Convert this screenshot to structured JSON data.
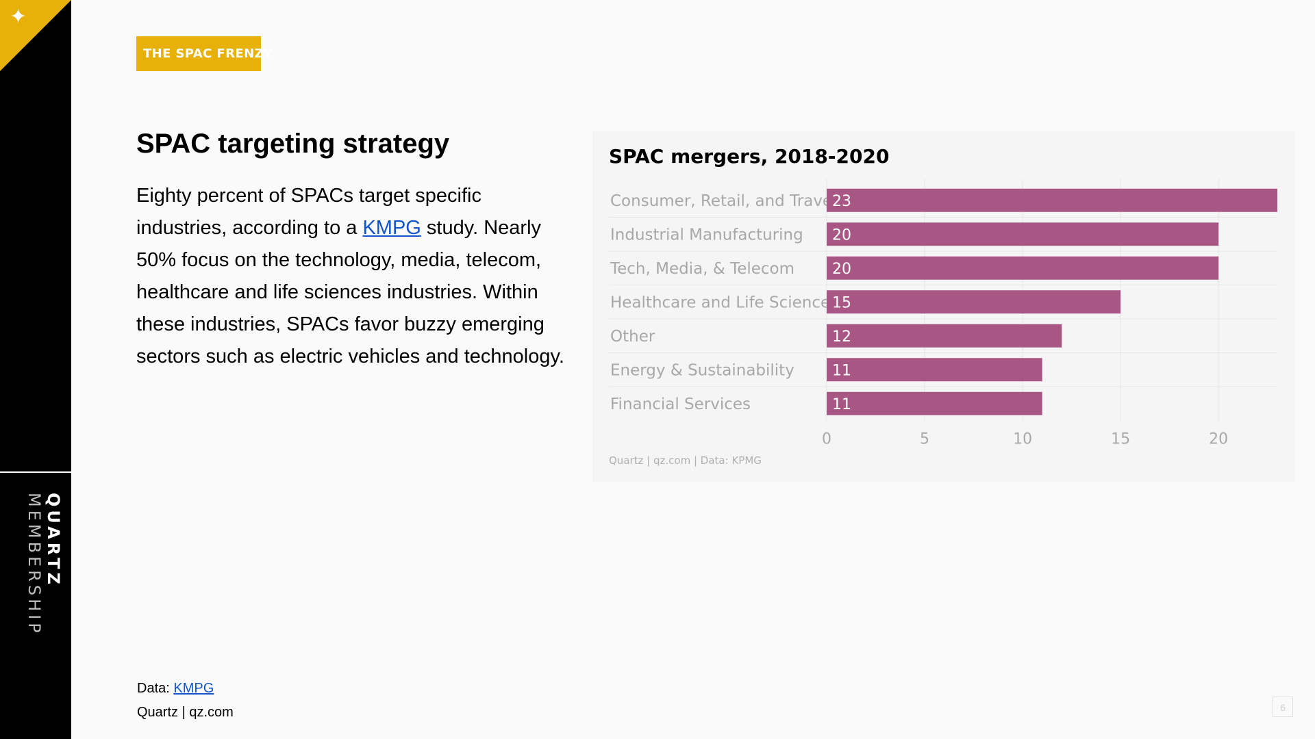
{
  "slide": {
    "brand_strong": "QUARTZ",
    "brand_light": "MEMBERSHIP",
    "tag": "THE SPAC FRENZY",
    "title": "SPAC targeting strategy",
    "body": {
      "part1": "Eighty percent of SPACs target specific industries, according to a ",
      "link": "KMPG",
      "part2": " study. Nearly 50% focus on the technology, media, telecom, healthcare and life sciences industries. Within these industries, SPACs favor buzzy emerging sectors such as electric vehicles and technology."
    },
    "footer": {
      "data_label": "Data: ",
      "data_link": "KMPG",
      "credit": "Quartz | qz.com"
    },
    "page_number": "6"
  },
  "colors": {
    "accent": "#e8b10a",
    "bar": "#a85784",
    "link": "#1155cc"
  },
  "icons": {
    "corner": "star-icon"
  },
  "chart_data": {
    "type": "bar",
    "orientation": "horizontal",
    "title": "SPAC mergers, 2018-2020",
    "categories": [
      "Consumer, Retail, and Travel",
      "Industrial Manufacturing",
      "Tech, Media, & Telecom",
      "Healthcare and Life Sciences",
      "Other",
      "Energy & Sustainability",
      "Financial Services"
    ],
    "values": [
      23,
      20,
      20,
      15,
      12,
      11,
      11
    ],
    "xlim": [
      0,
      23
    ],
    "xticks": [
      0,
      5,
      10,
      15,
      20
    ],
    "data_labels": true,
    "grid": true,
    "source": "Quartz | qz.com | Data: KPMG"
  }
}
